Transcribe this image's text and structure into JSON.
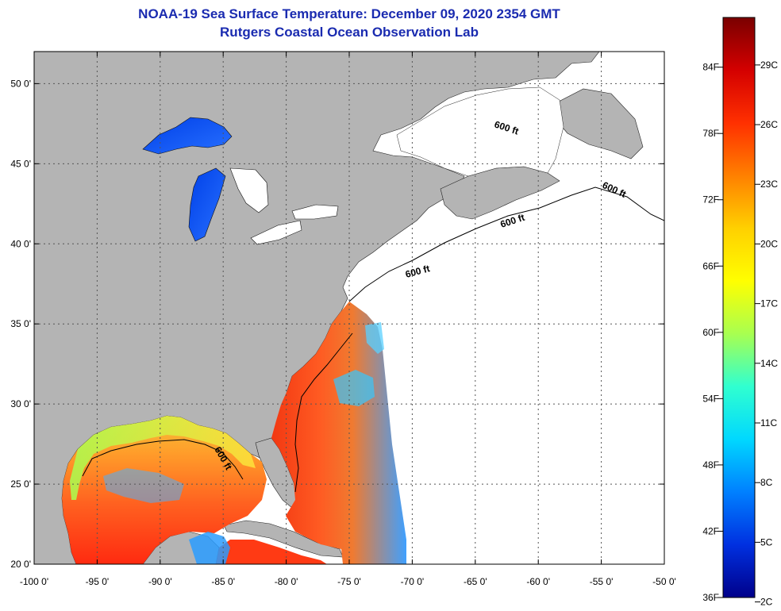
{
  "title": {
    "line1": "NOAA-19 Sea Surface Temperature:  December 09, 2020 2354 GMT",
    "line2": "Rutgers Coastal Ocean Observation Lab"
  },
  "map": {
    "lon_range": [
      -100,
      -50
    ],
    "lat_range": [
      20,
      52
    ],
    "x_ticks": [
      "-100 0'",
      "-95 0'",
      "-90 0'",
      "-85 0'",
      "-80 0'",
      "-75 0'",
      "-70 0'",
      "-65 0'",
      "-60 0'",
      "-55 0'",
      "-50 0'"
    ],
    "y_ticks": [
      "50 0'",
      "45 0'",
      "40 0'",
      "35 0'",
      "30 0'",
      "25 0'",
      "20 0'"
    ],
    "contour_labels": [
      "600 ft",
      "600 ft",
      "600 ft",
      "600 ft",
      "600 ft"
    ],
    "colors": {
      "land": "#b4b4b4",
      "no_data_ocean": "#ffffff",
      "grid": "#555555"
    }
  },
  "colorbar": {
    "fahrenheit_labels": [
      "84F",
      "78F",
      "72F",
      "66F",
      "60F",
      "54F",
      "48F",
      "42F",
      "36F"
    ],
    "celsius_labels": [
      "29C",
      "26C",
      "23C",
      "20C",
      "17C",
      "14C",
      "11C",
      "8C",
      "5C",
      "2C"
    ],
    "gradient": [
      "#7a0000",
      "#d40000",
      "#ff3000",
      "#ff8000",
      "#ffd000",
      "#ffff00",
      "#a8ff50",
      "#30ffd0",
      "#00d8ff",
      "#0080ff",
      "#0030e0",
      "#00008a"
    ]
  }
}
